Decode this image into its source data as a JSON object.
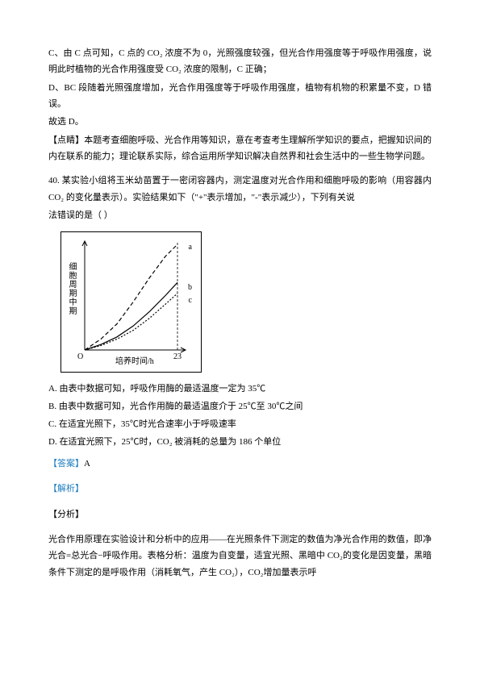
{
  "intro": {
    "p1": "C、由 C 点可知，C 点的 CO₂ 浓度不为 0，光照强度较强，但光合作用强度等于呼吸作用强度，说明此时植物的光合作用强度受 CO₂ 浓度的限制，C 正确；",
    "p2": "D、BC 段随着光照强度增加，光合作用强度等于呼吸作用强度，植物有机物的积累量不变，D 错误。",
    "p3": "故选 D。",
    "p4": "【点睛】本题考查细胞呼吸、光合作用等知识，意在考查考生理解所学知识的要点，把握知识间的内在联系的能力；理论联系实际，综合运用所学知识解决自然界和社会生活中的一些生物学问题。"
  },
  "question": {
    "number": "40.",
    "stem_pre": "某实验小组将玉米幼苗置于一密闭容器内，测定温度对光合作用和细胞呼吸的影响（用容器内 CO₂ 的变化量表示）。实验结果如下（\"+\"表示增加，\"-\"表示减少），下列有关说",
    "stem_post": "法错误的是（    ）",
    "options": {
      "A": "A. 由表中数据可知，呼吸作用酶的最适温度一定为 35℃",
      "B": "B. 由表中数据可知，光合作用酶的最适温度介于 25℃至 30℃之间",
      "C": "C. 在适宜光照下，35℃时光合速率小于呼吸速率",
      "D": "D. 在适宜光照下，25℃时，CO₂ 被消耗的总量为 186 个单位"
    },
    "answer_label": "【答案】",
    "answer_value": "A",
    "analysis_label": "【解析】",
    "analysis_pre": "【分析】",
    "analysis_body": "光合作用原理在实验设计和分析中的应用——在光照条件下测定的数值为净光合作用的数值，即净光合=总光合−呼吸作用。表格分析：温度为自变量，适宜光照、黑暗中 CO₂的变化是因变量，黑暗条件下测定的是呼吸作用（消耗氧气，产生 CO₂），CO₂增加量表示呼"
  },
  "chart": {
    "type": "line",
    "background_color": "#ffffff",
    "border_color": "#000000",
    "ylabel": "细胞周期中期",
    "xlabel": "培养时间/h",
    "xlim": [
      0,
      25
    ],
    "ylim": [
      0,
      100
    ],
    "x_dashed_at": 23,
    "x_tick_label": "23",
    "origin_label": "O",
    "axis_color": "#000000",
    "curves": [
      {
        "name": "a",
        "dash": "5,3",
        "color": "#000000",
        "points": [
          [
            0,
            0
          ],
          [
            4,
            10
          ],
          [
            8,
            24
          ],
          [
            12,
            44
          ],
          [
            16,
            66
          ],
          [
            20,
            86
          ],
          [
            23,
            97
          ]
        ]
      },
      {
        "name": "b",
        "dash": "none",
        "color": "#000000",
        "points": [
          [
            0,
            0
          ],
          [
            4,
            5
          ],
          [
            8,
            12
          ],
          [
            12,
            22
          ],
          [
            16,
            35
          ],
          [
            20,
            50
          ],
          [
            23,
            62
          ]
        ]
      },
      {
        "name": "c",
        "dash": "2,2",
        "color": "#000000",
        "points": [
          [
            0,
            0
          ],
          [
            4,
            4
          ],
          [
            8,
            10
          ],
          [
            12,
            18
          ],
          [
            16,
            29
          ],
          [
            20,
            42
          ],
          [
            23,
            52
          ]
        ]
      }
    ],
    "label_fontsize": 10
  }
}
